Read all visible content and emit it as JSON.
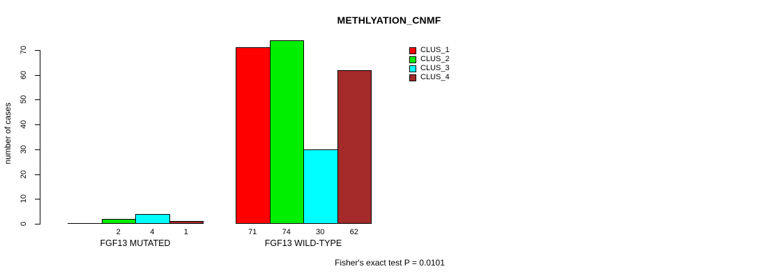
{
  "title": "METHLYATION_CNMF",
  "footer": "Fisher's exact test P = 0.0101",
  "chart_data": {
    "type": "bar",
    "title": "METHLYATION_CNMF",
    "xlabel": "",
    "ylabel": "number of cases",
    "ylim": [
      0,
      70
    ],
    "y_ticks": [
      0,
      10,
      20,
      30,
      40,
      50,
      60,
      70
    ],
    "grid": false,
    "legend_position": "top-right",
    "categories": [
      "FGF13 MUTATED",
      "FGF13 WILD-TYPE"
    ],
    "series": [
      {
        "name": "CLUS_1",
        "color": "#FF0000",
        "values": [
          0,
          71
        ]
      },
      {
        "name": "CLUS_2",
        "color": "#00EE00",
        "values": [
          2,
          74
        ]
      },
      {
        "name": "CLUS_3",
        "color": "#00FFFF",
        "values": [
          4,
          30
        ]
      },
      {
        "name": "CLUS_4",
        "color": "#A52A2A",
        "values": [
          1,
          62
        ]
      }
    ],
    "bar_value_labels_shown_when_nonzero": true,
    "annotation": "Fisher's exact test P = 0.0101"
  }
}
